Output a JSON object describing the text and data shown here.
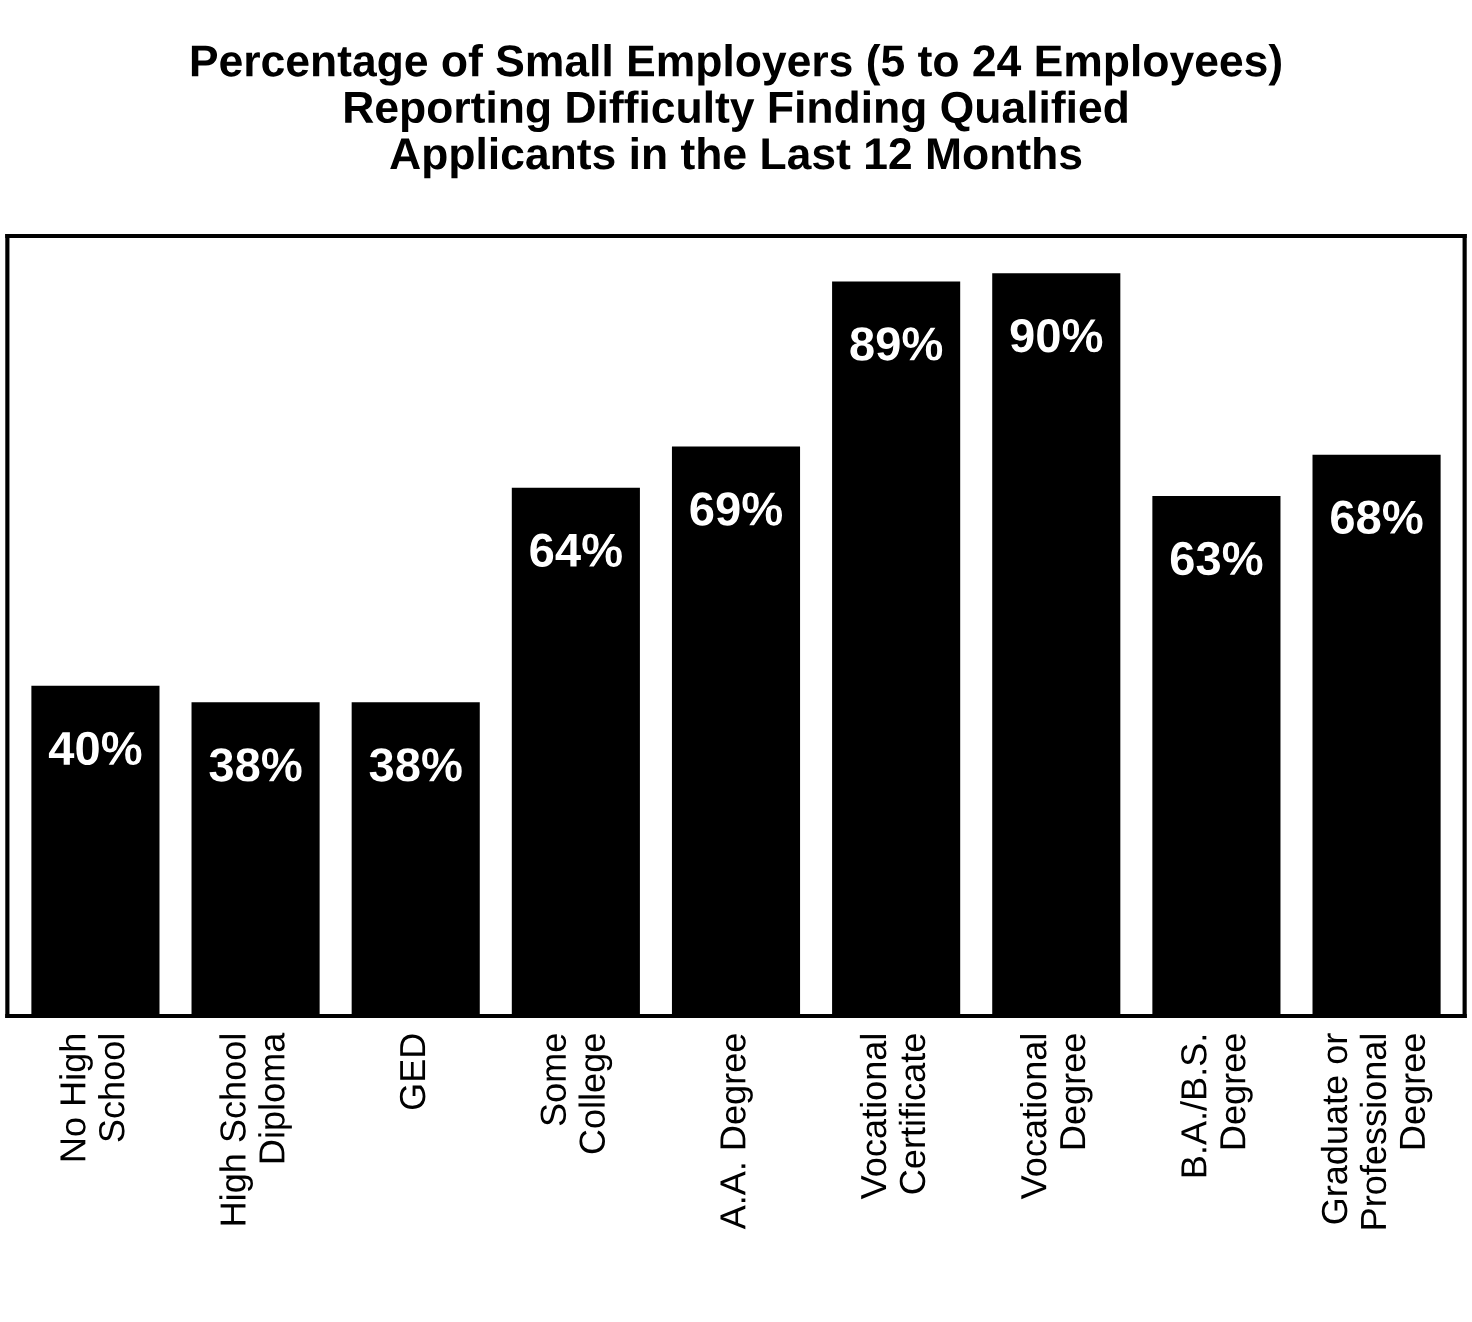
{
  "chart_data": {
    "type": "bar",
    "title": "Percentage of Small Employers (5 to 24 Employees)\nReporting Difficulty Finding Qualified\nApplicants in the Last 12 Months",
    "categories": [
      "No High\nSchool",
      "High School\nDiploma",
      "GED",
      "Some\nCollege",
      "A.A. Degree",
      "Vocational\nCertificate",
      "Vocational\nDegree",
      "B.A./B.S.\nDegree",
      "Graduate or\nProfessional\nDegree"
    ],
    "values": [
      40,
      38,
      38,
      64,
      69,
      89,
      90,
      63,
      68
    ],
    "value_labels": [
      "40%",
      "38%",
      "38%",
      "64%",
      "69%",
      "89%",
      "90%",
      "63%",
      "68%"
    ],
    "color": "#000000"
  }
}
